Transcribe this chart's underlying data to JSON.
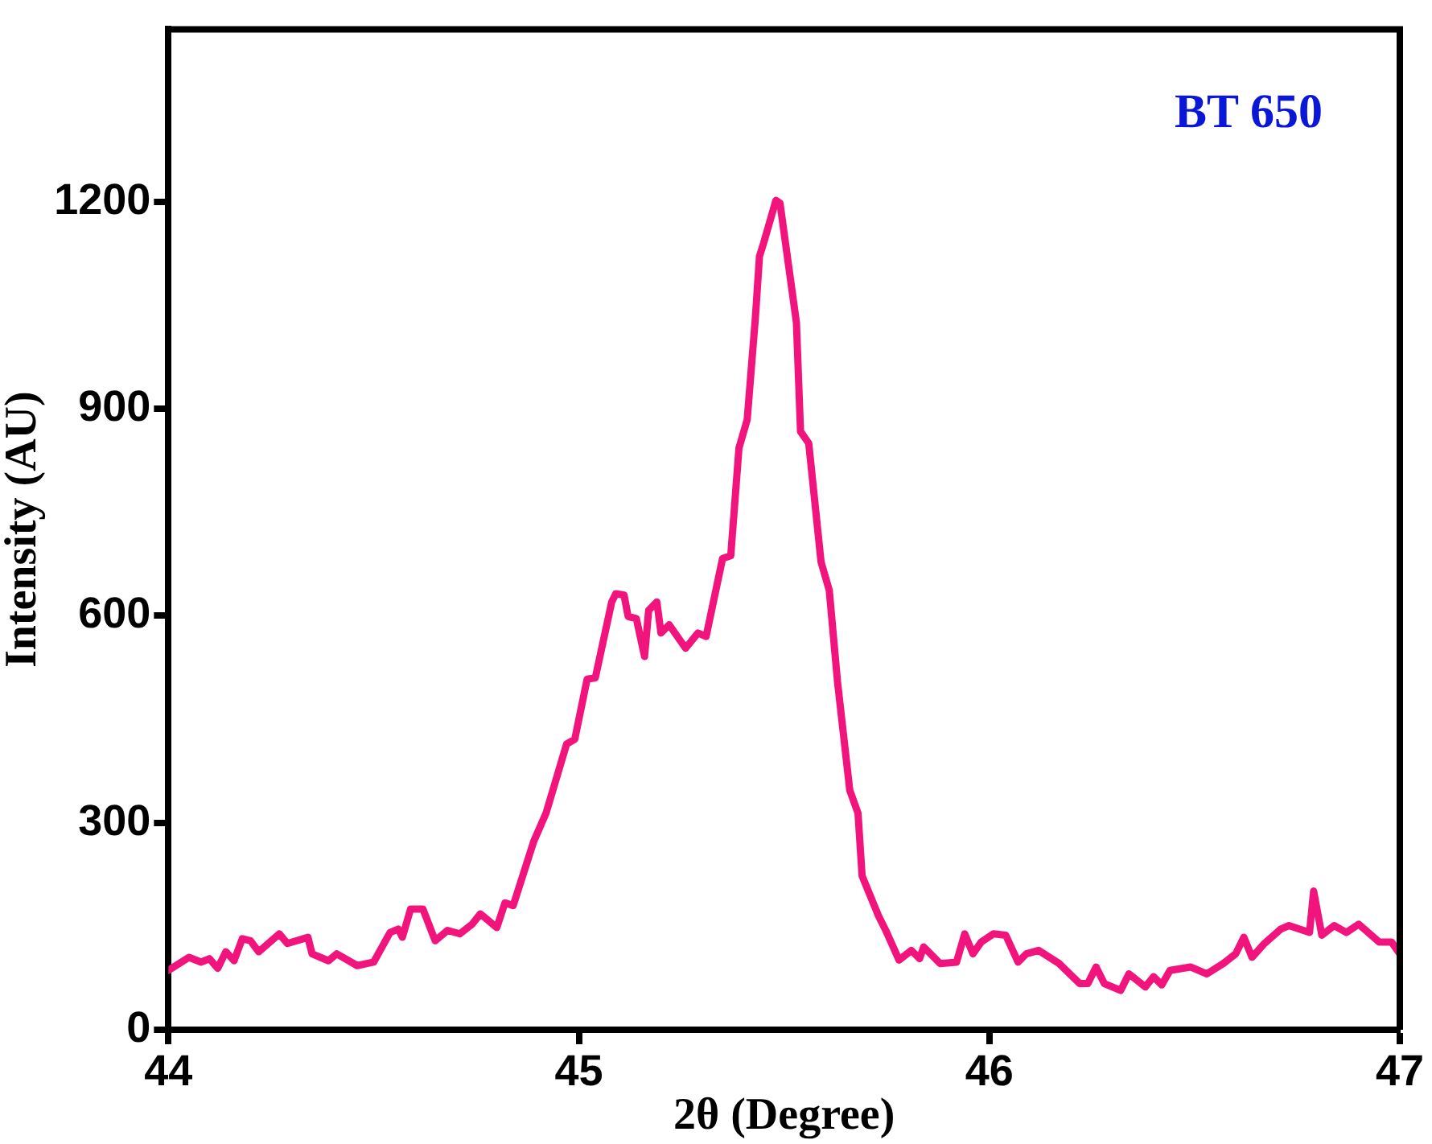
{
  "chart_data": {
    "type": "line",
    "xlabel": "2θ (Degree)",
    "ylabel": "Intensity (AU)",
    "annotations": [
      "BT 650"
    ],
    "xlim": [
      44,
      47
    ],
    "xticks": [
      44,
      45,
      46,
      47
    ],
    "ylim": [
      0,
      1450
    ],
    "yticks": [
      0,
      300,
      600,
      900,
      1200
    ],
    "marker": "none",
    "legend": false,
    "series": [
      {
        "color": "#f0147c",
        "x": [
          44.0,
          44.05,
          44.08,
          44.1,
          44.12,
          44.14,
          44.16,
          44.18,
          44.2,
          44.22,
          44.27,
          44.29,
          44.34,
          44.35,
          44.39,
          44.41,
          44.46,
          44.5,
          44.54,
          44.56,
          44.57,
          44.59,
          44.62,
          44.65,
          44.68,
          44.71,
          44.74,
          44.76,
          44.8,
          44.82,
          44.84,
          44.89,
          44.92,
          44.97,
          44.99,
          45.02,
          45.04,
          45.08,
          45.09,
          45.11,
          45.12,
          45.14,
          45.16,
          45.17,
          45.19,
          45.2,
          45.22,
          45.26,
          45.29,
          45.31,
          45.35,
          45.37,
          45.39,
          45.41,
          45.43,
          45.44,
          45.45,
          45.48,
          45.49,
          45.53,
          45.54,
          45.56,
          45.59,
          45.61,
          45.63,
          45.66,
          45.68,
          45.69,
          45.73,
          45.75,
          45.78,
          45.81,
          45.83,
          45.84,
          45.88,
          45.92,
          45.94,
          45.96,
          45.98,
          46.01,
          46.04,
          46.07,
          46.09,
          46.12,
          46.17,
          46.22,
          46.24,
          46.26,
          46.28,
          46.32,
          46.34,
          46.38,
          46.4,
          46.42,
          46.44,
          46.49,
          46.53,
          46.57,
          46.6,
          46.62,
          46.64,
          46.67,
          46.71,
          46.73,
          46.78,
          46.79,
          46.81,
          46.84,
          46.87,
          46.9,
          46.95,
          46.98,
          47.0
        ],
        "values": [
          86,
          105,
          98,
          103,
          89,
          113,
          100,
          132,
          129,
          113,
          139,
          125,
          134,
          110,
          100,
          110,
          93,
          98,
          141,
          146,
          134,
          175,
          175,
          129,
          144,
          139,
          153,
          168,
          148,
          184,
          180,
          273,
          314,
          414,
          421,
          508,
          510,
          620,
          632,
          630,
          599,
          596,
          541,
          608,
          620,
          575,
          587,
          553,
          575,
          570,
          683,
          687,
          843,
          884,
          1032,
          1121,
          1140,
          1202,
          1198,
          1025,
          867,
          850,
          678,
          637,
          505,
          347,
          314,
          223,
          165,
          141,
          101,
          115,
          103,
          120,
          96,
          98,
          139,
          110,
          127,
          139,
          137,
          98,
          110,
          115,
          96,
          67,
          67,
          91,
          67,
          57,
          81,
          62,
          77,
          65,
          86,
          91,
          81,
          96,
          110,
          134,
          105,
          125,
          146,
          151,
          141,
          201,
          137,
          151,
          141,
          153,
          127,
          127,
          110
        ]
      }
    ]
  }
}
